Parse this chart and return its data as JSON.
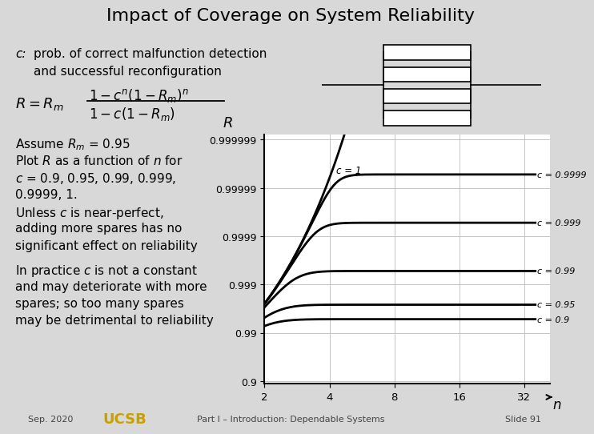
{
  "title": "Impact of Coverage on System Reliability",
  "bg_color": "#d8d8d8",
  "Rm": 0.95,
  "c_values": [
    0.9,
    0.95,
    0.99,
    0.999,
    0.9999,
    1.0
  ],
  "c_labels": [
    "c = 0.9",
    "c = 0.95",
    "c = 0.99",
    "c = 0.999",
    "c = 0.9999",
    "c = 1"
  ],
  "x_ticks": [
    2,
    4,
    8,
    16,
    32
  ],
  "x_tick_labels": [
    "2",
    "4",
    "8",
    "16",
    "32"
  ],
  "y_ticks": [
    0.9,
    0.99,
    0.999,
    0.9999,
    0.99999,
    0.999999
  ],
  "y_tick_labels": [
    "0.9",
    "0.99",
    "0.999",
    "0.9999",
    "0.99999",
    "0.999999"
  ],
  "line_color": "#000000",
  "line_width": 2.0,
  "grid_color": "#bbbbbb",
  "slide_text": "Sep. 2020",
  "footer_center": "Part I – Introduction: Dependable Systems",
  "footer_right": "Slide 91"
}
